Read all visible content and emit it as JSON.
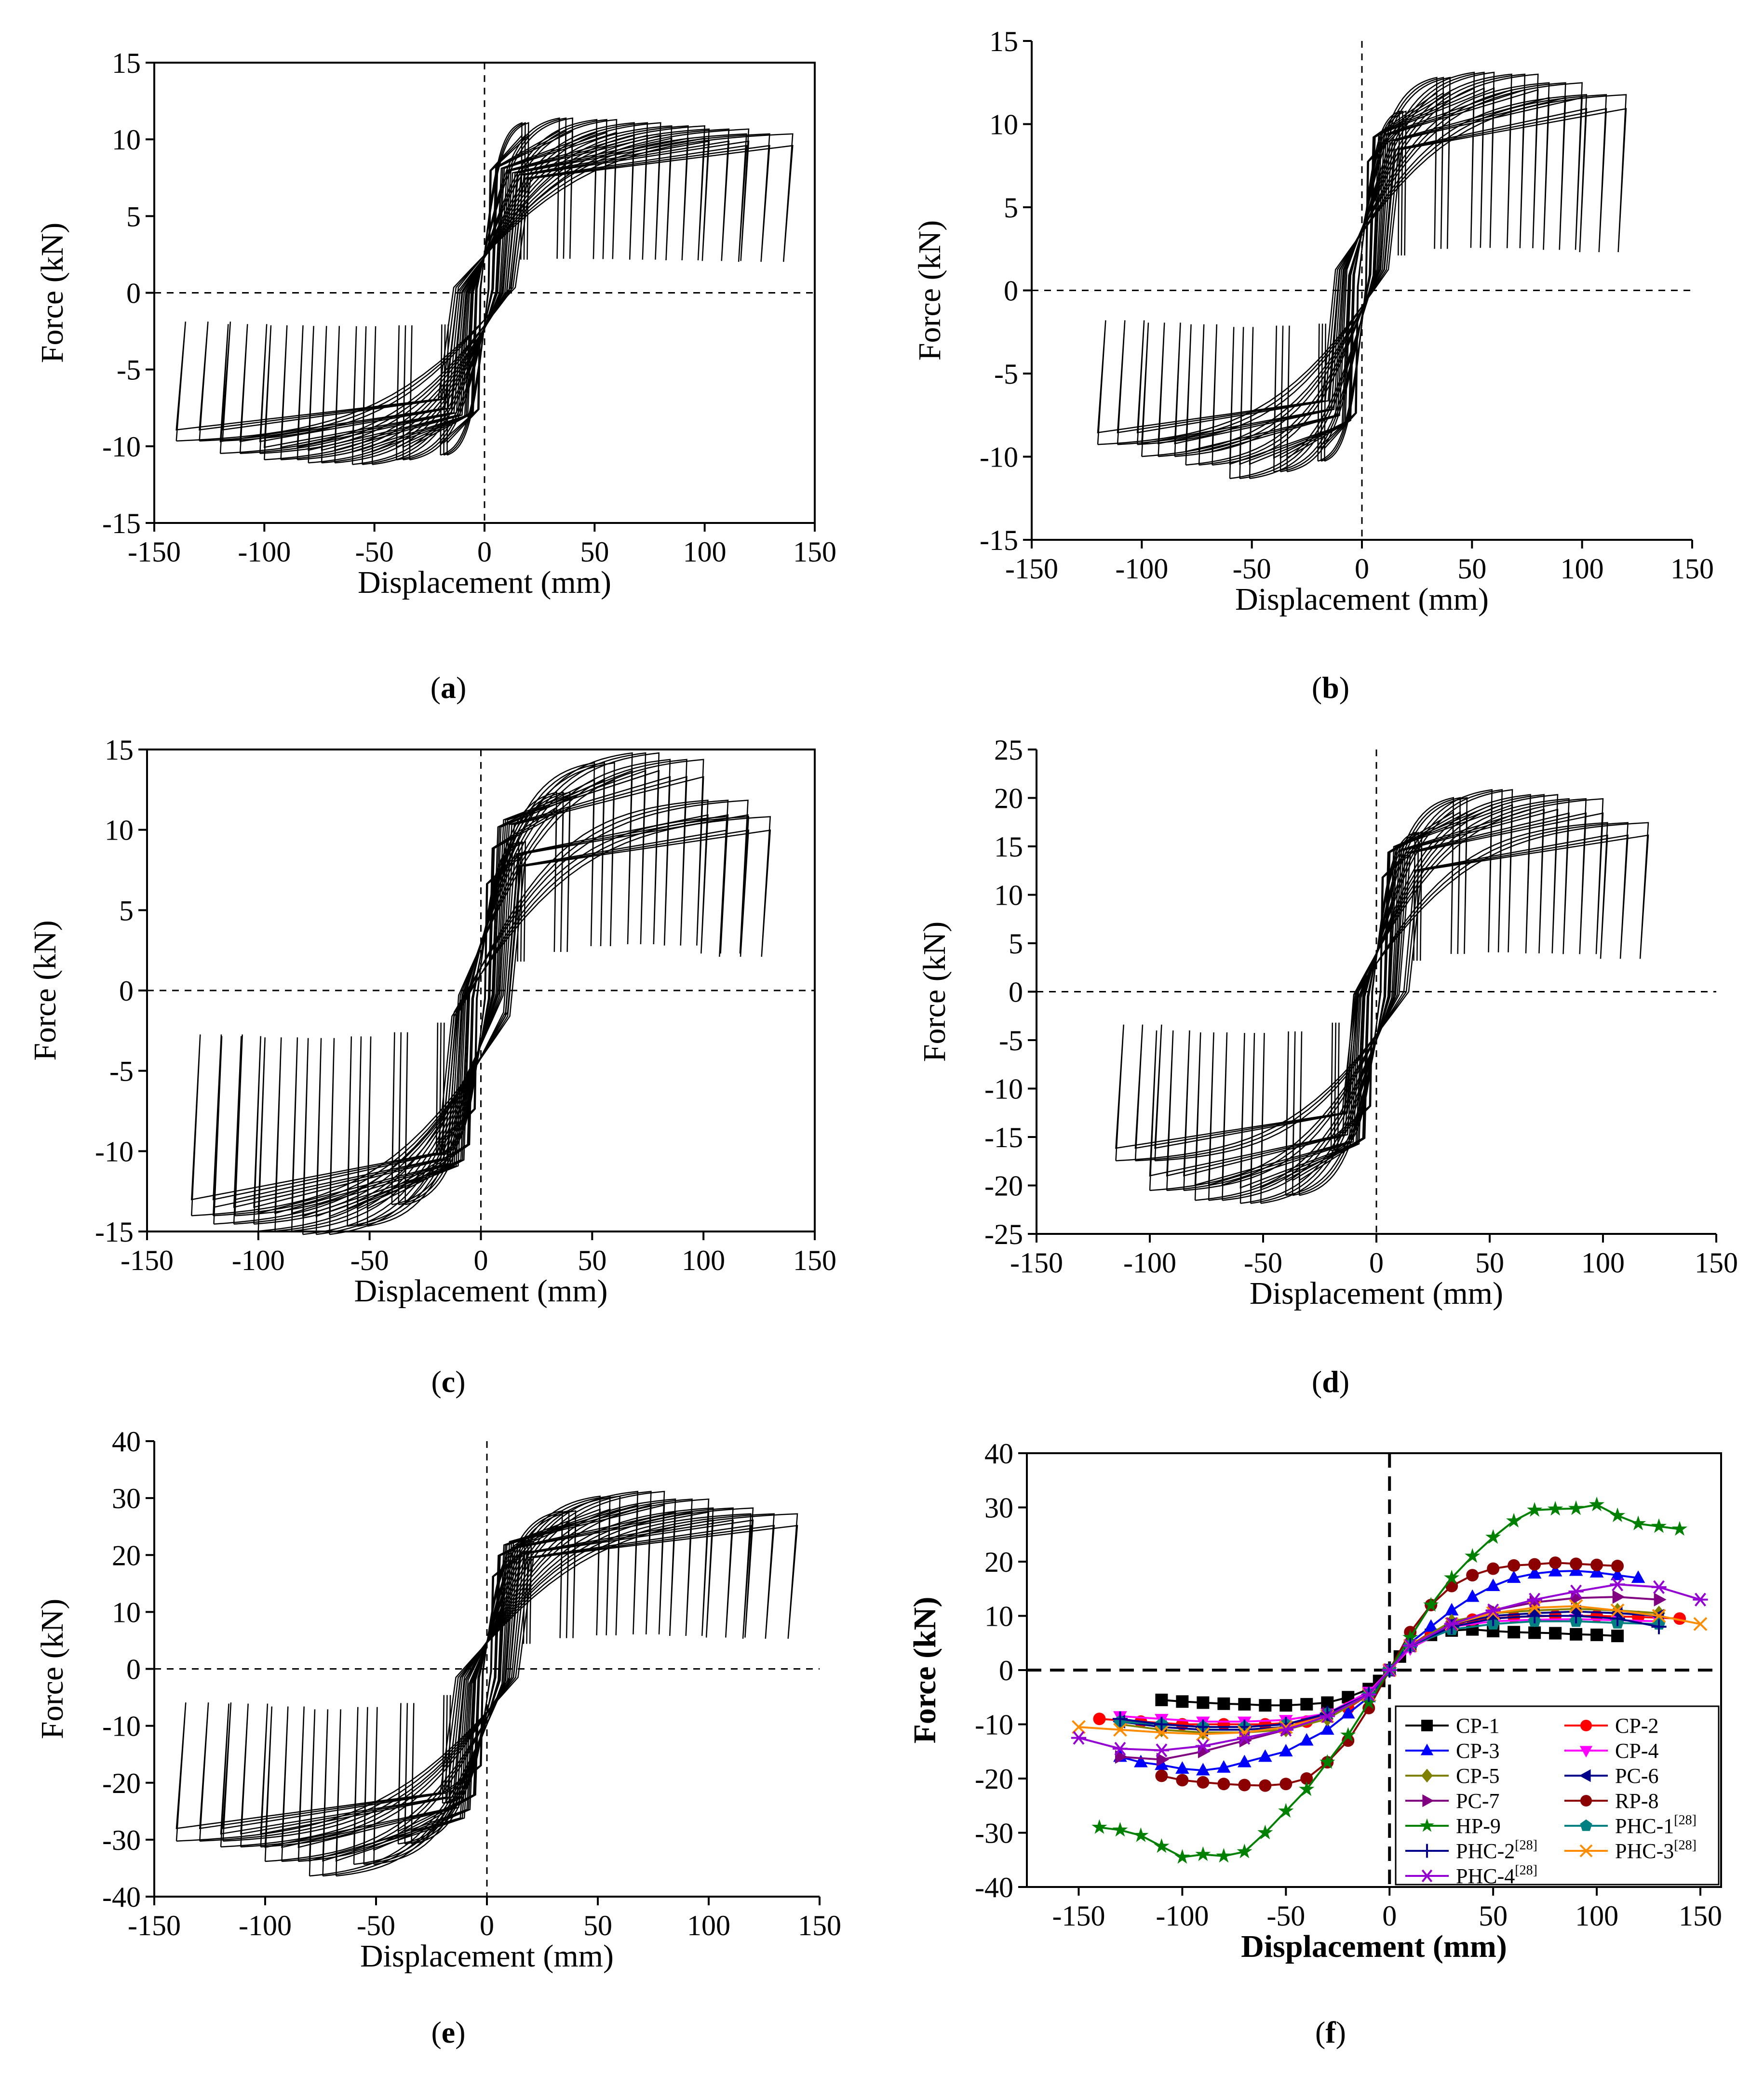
{
  "chart_data": [
    {
      "panel": "a",
      "type": "line",
      "xlabel": "Displacement (mm)",
      "ylabel": "Force (kN)",
      "xlim": [
        -150,
        150
      ],
      "ylim": [
        -15,
        15
      ],
      "xticks": [
        "-150",
        "-100",
        "-50",
        "0",
        "50",
        "100",
        "150"
      ],
      "yticks": [
        "-15",
        "-10",
        "-5",
        "0",
        "5",
        "10",
        "15"
      ],
      "hysteresis": {
        "peak_pos": [
          [
            20,
            10.8
          ],
          [
            40,
            11.1
          ],
          [
            60,
            11.0
          ],
          [
            80,
            10.8
          ],
          [
            100,
            10.6
          ],
          [
            120,
            10.4
          ],
          [
            140,
            10.1
          ]
        ],
        "peak_neg": [
          [
            -20,
            -10.3
          ],
          [
            -40,
            -10.6
          ],
          [
            -60,
            -10.9
          ],
          [
            -80,
            -10.8
          ],
          [
            -100,
            -10.6
          ],
          [
            -120,
            -10.2
          ],
          [
            -140,
            -9.4
          ]
        ],
        "frame": true
      }
    },
    {
      "panel": "b",
      "type": "line",
      "xlabel": "Displacement (mm)",
      "ylabel": "Force (kN)",
      "xlim": [
        -150,
        150
      ],
      "ylim": [
        -15,
        15
      ],
      "xticks": [
        "-150",
        "-100",
        "-50",
        "0",
        "50",
        "100",
        "150"
      ],
      "yticks": [
        "-15",
        "-10",
        "-5",
        "0",
        "5",
        "10",
        "15"
      ],
      "hysteresis": {
        "peak_pos": [
          [
            20,
            10.5
          ],
          [
            40,
            12.5
          ],
          [
            60,
            12.8
          ],
          [
            80,
            12.7
          ],
          [
            100,
            12.2
          ],
          [
            120,
            11.5
          ]
        ],
        "peak_neg": [
          [
            -20,
            -10.0
          ],
          [
            -40,
            -10.6
          ],
          [
            -60,
            -11.0
          ],
          [
            -80,
            -10.2
          ],
          [
            -100,
            -9.7
          ],
          [
            -120,
            -9.0
          ]
        ],
        "frame": false
      }
    },
    {
      "panel": "c",
      "type": "line",
      "xlabel": "Displacement (mm)",
      "ylabel": "Force (kN)",
      "xlim": [
        -150,
        150
      ],
      "ylim": [
        -15,
        15
      ],
      "xticks": [
        "-150",
        "-100",
        "-50",
        "0",
        "50",
        "100",
        "150"
      ],
      "yticks": [
        "-15",
        "-10",
        "-5",
        "0",
        "5",
        "10",
        "15"
      ],
      "hysteresis": {
        "peak_pos": [
          [
            20,
            9.0
          ],
          [
            40,
            12.0
          ],
          [
            60,
            13.8
          ],
          [
            80,
            14.4
          ],
          [
            100,
            14.0
          ],
          [
            120,
            11.5
          ],
          [
            130,
            10.5
          ]
        ],
        "peak_neg": [
          [
            -20,
            -10.0
          ],
          [
            -40,
            -13.0
          ],
          [
            -60,
            -14.3
          ],
          [
            -80,
            -14.8
          ],
          [
            -100,
            -14.6
          ],
          [
            -120,
            -14.2
          ],
          [
            -130,
            -13.7
          ]
        ],
        "frame": true
      }
    },
    {
      "panel": "d",
      "type": "line",
      "xlabel": "Displacement (mm)",
      "ylabel": "Force (kN)",
      "xlim": [
        -150,
        150
      ],
      "ylim": [
        -25,
        25
      ],
      "xticks": [
        "-150",
        "-100",
        "-50",
        "0",
        "50",
        "100",
        "150"
      ],
      "yticks": [
        "-25",
        "-20",
        "-15",
        "-10",
        "-5",
        "0",
        "5",
        "10",
        "15",
        "20",
        "25"
      ],
      "hysteresis": {
        "peak_pos": [
          [
            20,
            16
          ],
          [
            40,
            19.5
          ],
          [
            60,
            20.3
          ],
          [
            80,
            19.8
          ],
          [
            100,
            19.4
          ],
          [
            120,
            17.0
          ]
        ],
        "peak_neg": [
          [
            -20,
            -16
          ],
          [
            -40,
            -20.5
          ],
          [
            -60,
            -21.3
          ],
          [
            -80,
            -21.0
          ],
          [
            -100,
            -20.0
          ],
          [
            -115,
            -17.0
          ]
        ],
        "frame": false
      }
    },
    {
      "panel": "e",
      "type": "line",
      "xlabel": "Displacement (mm)",
      "ylabel": "Force (kN)",
      "xlim": [
        -150,
        150
      ],
      "ylim": [
        -40,
        40
      ],
      "xticks": [
        "-150",
        "-100",
        "-50",
        "0",
        "50",
        "100",
        "150"
      ],
      "yticks": [
        "-40",
        "-30",
        "-20",
        "-10",
        "0",
        "10",
        "20",
        "30",
        "40"
      ],
      "hysteresis": {
        "peak_pos": [
          [
            20,
            22
          ],
          [
            40,
            27
          ],
          [
            60,
            29.5
          ],
          [
            80,
            30.3
          ],
          [
            100,
            29.0
          ],
          [
            120,
            27.5
          ],
          [
            140,
            26.5
          ]
        ],
        "peak_neg": [
          [
            -20,
            -23
          ],
          [
            -40,
            -30
          ],
          [
            -60,
            -33.5
          ],
          [
            -80,
            -35.5
          ],
          [
            -100,
            -33.0
          ],
          [
            -120,
            -30.5
          ],
          [
            -140,
            -29.5
          ]
        ],
        "frame": false
      }
    },
    {
      "panel": "f",
      "type": "line",
      "xlabel": "Displacement (mm)",
      "ylabel": "Force (kN)",
      "xlim": [
        -175,
        160
      ],
      "ylim": [
        -40,
        40
      ],
      "xticks": [
        "-150",
        "-100",
        "-50",
        "0",
        "50",
        "100",
        "150"
      ],
      "yticks": [
        "-40",
        "-30",
        "-20",
        "-10",
        "0",
        "10",
        "20",
        "30",
        "40"
      ],
      "legend_placement": "bottom-right",
      "series": [
        {
          "name": "CP-1",
          "color": "#000000",
          "marker": "square",
          "x": [
            -110,
            -100,
            -90,
            -80,
            -70,
            -60,
            -50,
            -40,
            -30,
            -20,
            -10,
            -5,
            0,
            5,
            10,
            20,
            30,
            40,
            50,
            60,
            70,
            80,
            90,
            100,
            110
          ],
          "y": [
            -5.5,
            -5.8,
            -6.0,
            -6.2,
            -6.3,
            -6.5,
            -6.5,
            -6.3,
            -6.0,
            -5.0,
            -3.5,
            -2.0,
            0,
            2.5,
            4.5,
            6.5,
            7.3,
            7.5,
            7.2,
            7.0,
            6.9,
            6.8,
            6.6,
            6.5,
            6.3
          ]
        },
        {
          "name": "CP-2",
          "color": "#ff0000",
          "marker": "circle",
          "x": [
            -140,
            -120,
            -100,
            -80,
            -60,
            -40,
            -20,
            -10,
            0,
            10,
            20,
            40,
            60,
            80,
            100,
            120,
            140
          ],
          "y": [
            -9,
            -9.5,
            -10,
            -10,
            -10,
            -9.5,
            -7,
            -4.5,
            0,
            4.5,
            7,
            9.3,
            9.8,
            10,
            10,
            9.8,
            9.5
          ]
        },
        {
          "name": "CP-3",
          "color": "#0000ff",
          "marker": "triangle-up",
          "x": [
            -130,
            -120,
            -110,
            -100,
            -90,
            -80,
            -70,
            -60,
            -50,
            -40,
            -30,
            -20,
            -10,
            0,
            10,
            20,
            30,
            40,
            50,
            60,
            70,
            80,
            90,
            100,
            110,
            120
          ],
          "y": [
            -16,
            -17,
            -17.5,
            -18.2,
            -18.5,
            -18,
            -17,
            -16,
            -15,
            -13,
            -11,
            -8,
            -5,
            0,
            5,
            8,
            11,
            13.5,
            15.5,
            17,
            17.8,
            18.2,
            18.3,
            18,
            17.5,
            17
          ]
        },
        {
          "name": "CP-4",
          "color": "#ff00ff",
          "marker": "triangle-down",
          "x": [
            -130,
            -110,
            -90,
            -70,
            -50,
            -30,
            -10,
            0,
            10,
            30,
            50,
            70,
            90,
            110,
            130
          ],
          "y": [
            -8.5,
            -9,
            -9.5,
            -9.5,
            -9.2,
            -8,
            -4,
            0,
            4,
            8,
            9,
            9.3,
            9.4,
            9.2,
            9
          ]
        },
        {
          "name": "CP-5",
          "color": "#808000",
          "marker": "diamond",
          "x": [
            -130,
            -110,
            -90,
            -70,
            -50,
            -30,
            -10,
            0,
            10,
            30,
            50,
            70,
            90,
            110,
            130
          ],
          "y": [
            -10,
            -11,
            -11.5,
            -11.5,
            -11,
            -9,
            -4.5,
            0,
            4.5,
            9,
            10.5,
            11,
            11.3,
            11,
            10.5
          ]
        },
        {
          "name": "PC-6",
          "color": "#00008b",
          "marker": "triangle-left",
          "x": [
            -130,
            -110,
            -90,
            -70,
            -50,
            -30,
            -10,
            0,
            10,
            30,
            50,
            70,
            90,
            110,
            130
          ],
          "y": [
            -9.5,
            -10.5,
            -11,
            -11,
            -10.5,
            -8.5,
            -4.5,
            0,
            4.5,
            8.5,
            10,
            10.5,
            10.8,
            10.5,
            10
          ]
        },
        {
          "name": "PC-7",
          "color": "#800080",
          "marker": "triangle-right",
          "x": [
            -130,
            -110,
            -90,
            -70,
            -50,
            -30,
            -10,
            0,
            10,
            30,
            50,
            70,
            90,
            110,
            130
          ],
          "y": [
            -16,
            -16.5,
            -15,
            -13,
            -11,
            -8,
            -4.5,
            0,
            4.5,
            8.5,
            11,
            12.5,
            13.3,
            13.5,
            13
          ]
        },
        {
          "name": "RP-8",
          "color": "#8b0000",
          "marker": "circle",
          "x": [
            -110,
            -100,
            -90,
            -80,
            -70,
            -60,
            -50,
            -40,
            -30,
            -20,
            -10,
            0,
            10,
            20,
            30,
            40,
            50,
            60,
            70,
            80,
            90,
            100,
            110
          ],
          "y": [
            -19.5,
            -20.3,
            -20.7,
            -21,
            -21.2,
            -21.3,
            -21,
            -20,
            -17,
            -13,
            -7,
            0,
            7,
            12,
            15.5,
            17.5,
            18.7,
            19.3,
            19.5,
            19.8,
            19.6,
            19.4,
            19.2
          ]
        },
        {
          "name": "HP-9",
          "color": "#008000",
          "marker": "star",
          "x": [
            -140,
            -130,
            -120,
            -110,
            -100,
            -90,
            -80,
            -70,
            -60,
            -50,
            -40,
            -30,
            -20,
            -10,
            0,
            10,
            20,
            30,
            40,
            50,
            60,
            70,
            80,
            90,
            100,
            110,
            120,
            130,
            140
          ],
          "y": [
            -29,
            -29.5,
            -30.5,
            -32.5,
            -34.5,
            -34,
            -34.3,
            -33.5,
            -30,
            -26,
            -22,
            -17,
            -12,
            -6,
            0,
            6,
            12,
            17,
            21,
            24.5,
            27.5,
            29.5,
            29.7,
            29.8,
            30.5,
            28.5,
            27,
            26.5,
            26
          ]
        },
        {
          "name": "PHC-1",
          "sup": "[28]",
          "color": "#008080",
          "marker": "pentagon",
          "x": [
            -130,
            -110,
            -90,
            -70,
            -50,
            -30,
            -10,
            0,
            10,
            30,
            50,
            70,
            90,
            110,
            130
          ],
          "y": [
            -9.5,
            -10,
            -10.5,
            -10.5,
            -10,
            -8,
            -4.5,
            0,
            4.5,
            7.5,
            8.5,
            9,
            9,
            8.7,
            8.5
          ]
        },
        {
          "name": "PHC-2",
          "sup": "[28]",
          "color": "#00008b",
          "marker": "plus",
          "x": [
            -130,
            -110,
            -90,
            -70,
            -50,
            -30,
            -10,
            0,
            10,
            30,
            50,
            70,
            90,
            110,
            130
          ],
          "y": [
            -9,
            -10,
            -10.5,
            -10.5,
            -10,
            -8,
            -4.5,
            0,
            4.5,
            8,
            9.5,
            10,
            10,
            9.5,
            8
          ]
        },
        {
          "name": "PHC-3",
          "sup": "[28]",
          "color": "#ff8c00",
          "marker": "x",
          "x": [
            -150,
            -130,
            -110,
            -90,
            -70,
            -50,
            -30,
            -10,
            0,
            10,
            30,
            50,
            70,
            90,
            110,
            130,
            150
          ],
          "y": [
            -10.5,
            -11,
            -11.5,
            -11.8,
            -11.5,
            -10.5,
            -8.5,
            -4.5,
            0,
            4.5,
            8.5,
            10.5,
            11.5,
            11.8,
            11,
            10,
            8.5
          ]
        },
        {
          "name": "PHC-4",
          "sup": "[28]",
          "color": "#9400d3",
          "marker": "asterisk",
          "x": [
            -150,
            -130,
            -110,
            -90,
            -70,
            -50,
            -30,
            -10,
            0,
            10,
            30,
            50,
            70,
            90,
            110,
            130,
            150
          ],
          "y": [
            -12.5,
            -14.5,
            -14.8,
            -14,
            -12.5,
            -11,
            -8.5,
            -4.5,
            0,
            4.5,
            8.5,
            11,
            13,
            14.5,
            15.8,
            15.3,
            13
          ]
        }
      ]
    }
  ],
  "panel_labels": [
    "a",
    "b",
    "c",
    "d",
    "e",
    "f"
  ]
}
